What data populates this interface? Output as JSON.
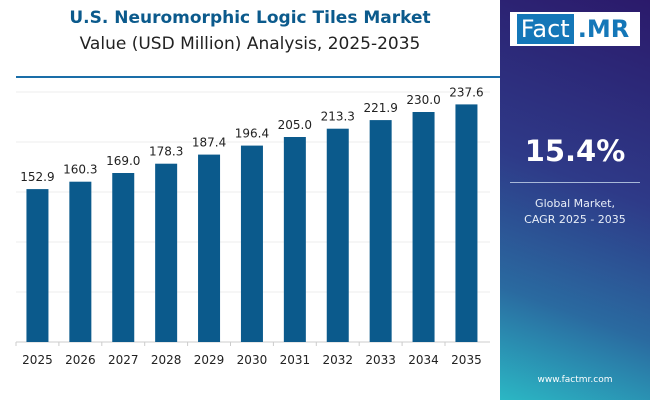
{
  "chart_data": {
    "type": "bar",
    "title": "U.S. Neuromorphic Logic Tiles Market",
    "subtitle": "Value (USD Million) Analysis, 2025-2035",
    "categories": [
      "2025",
      "2026",
      "2027",
      "2028",
      "2029",
      "2030",
      "2031",
      "2032",
      "2033",
      "2034",
      "2035"
    ],
    "values": [
      152.9,
      160.3,
      169.0,
      178.3,
      187.4,
      196.4,
      205.0,
      213.3,
      221.9,
      230.0,
      237.6
    ],
    "data_labels": [
      "152.9",
      "160.3",
      "169.0",
      "178.3",
      "187.4",
      "196.4",
      "205.0",
      "213.3",
      "221.9",
      "230.0",
      "237.6"
    ],
    "xlabel": "",
    "ylabel": "",
    "ylim": [
      0,
      250
    ],
    "grid": true,
    "bar_color": "#0b5a8c"
  },
  "sidebar": {
    "logo_left": "Fact",
    "logo_right": ".MR",
    "cagr_value": "15.4%",
    "cagr_label_1": "Global Market,",
    "cagr_label_2": "CAGR 2025 - 2035",
    "website": "www.factmr.com"
  }
}
